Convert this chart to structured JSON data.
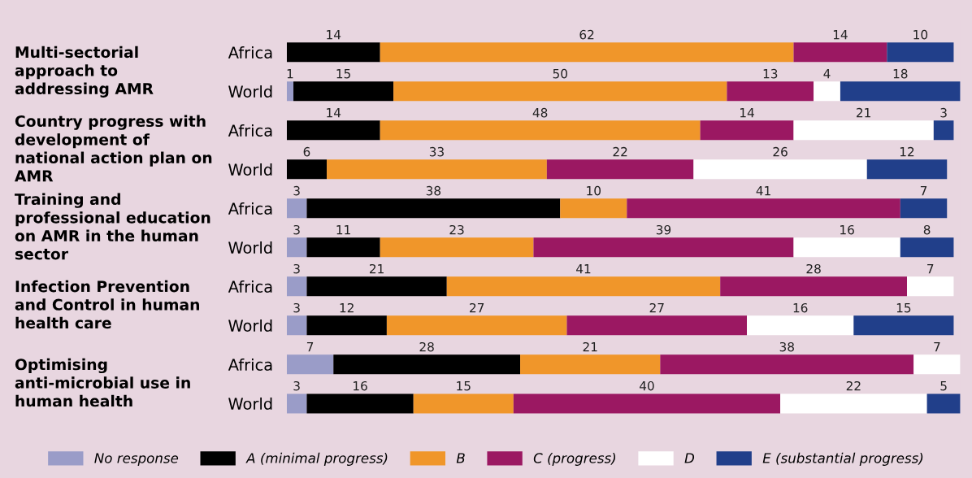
{
  "chart_data": {
    "type": "bar",
    "orientation": "horizontal",
    "stacked": true,
    "categories": [
      "Africa",
      "World",
      "Africa",
      "World",
      "Africa",
      "World",
      "Africa",
      "World",
      "Africa",
      "World"
    ],
    "series": [
      {
        "name": "No response",
        "color": "#9a9cc8",
        "values": [
          0,
          1,
          0,
          0,
          3,
          3,
          3,
          3,
          7,
          3
        ],
        "value_labels": [
          null,
          "1",
          null,
          null,
          "3",
          "3",
          "3",
          "3",
          "7",
          "3"
        ]
      },
      {
        "name": "A (minimal progress)",
        "color": "#000000",
        "values": [
          14,
          15,
          14,
          6,
          38,
          11,
          21,
          12,
          28,
          16
        ],
        "value_labels": [
          "14",
          "15",
          "14",
          "6",
          "38",
          "11",
          "21",
          "12",
          "28",
          "16"
        ]
      },
      {
        "name": "B",
        "color": "#f0962a",
        "values": [
          62,
          50,
          48,
          33,
          10,
          23,
          41,
          27,
          21,
          15
        ],
        "value_labels": [
          "62",
          "50",
          "48",
          "33",
          "10",
          "23",
          "41",
          "27",
          "21",
          "15"
        ]
      },
      {
        "name": "C (progress)",
        "color": "#9b1862",
        "values": [
          14,
          13,
          14,
          22,
          41,
          39,
          28,
          27,
          38,
          40
        ],
        "value_labels": [
          "14",
          "13",
          "14",
          "22",
          "41",
          "39",
          "28",
          "27",
          "38",
          "40"
        ]
      },
      {
        "name": "D",
        "color": "#ffffff",
        "values": [
          0,
          4,
          21,
          26,
          0,
          16,
          7,
          16,
          7,
          22
        ],
        "value_labels": [
          null,
          "4",
          "21",
          "26",
          null,
          "16",
          "7",
          "16",
          "7",
          "22"
        ]
      },
      {
        "name": "E (substantial progress)",
        "color": "#213f8a",
        "values": [
          10,
          18,
          3,
          12,
          7,
          8,
          0,
          15,
          0,
          5
        ],
        "value_labels": [
          "10",
          "18",
          "3",
          "12",
          "7",
          "8",
          null,
          "15",
          null,
          "5"
        ]
      }
    ],
    "annotations": [
      "Multi-sectorial approach to addressing AMR",
      "Country progress with development of national action plan on AMR",
      "Training and professional education on AMR in the human sector",
      "Infection Prevention and Control in human health care",
      "Optimising anti-microbial use in human health"
    ],
    "xlim": [
      0,
      101
    ],
    "tick_labels": "y",
    "legend": "bottom",
    "grid": false
  }
}
